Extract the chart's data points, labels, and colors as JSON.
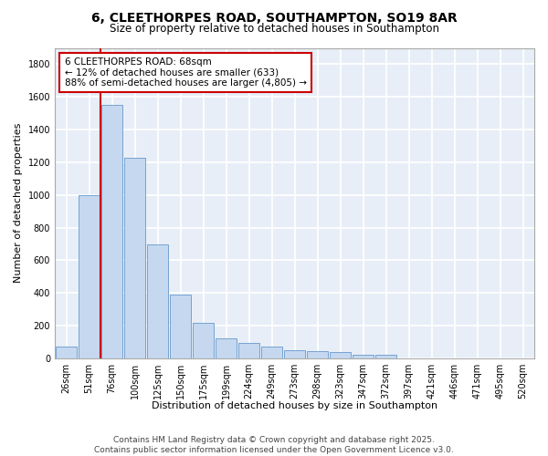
{
  "title_line1": "6, CLEETHORPES ROAD, SOUTHAMPTON, SO19 8AR",
  "title_line2": "Size of property relative to detached houses in Southampton",
  "xlabel": "Distribution of detached houses by size in Southampton",
  "ylabel": "Number of detached properties",
  "categories": [
    "26sqm",
    "51sqm",
    "76sqm",
    "100sqm",
    "125sqm",
    "150sqm",
    "175sqm",
    "199sqm",
    "224sqm",
    "249sqm",
    "273sqm",
    "298sqm",
    "323sqm",
    "347sqm",
    "372sqm",
    "397sqm",
    "421sqm",
    "446sqm",
    "471sqm",
    "495sqm",
    "520sqm"
  ],
  "values": [
    75,
    1000,
    1550,
    1230,
    700,
    390,
    220,
    125,
    95,
    70,
    50,
    45,
    40,
    20,
    20,
    0,
    0,
    0,
    0,
    0,
    0
  ],
  "bar_color": "#c5d8ef",
  "bar_edge_color": "#6699cc",
  "background_color": "#e8eef7",
  "grid_color": "#ffffff",
  "marker_line_color": "#cc0000",
  "annotation_text_line1": "6 CLEETHORPES ROAD: 68sqm",
  "annotation_text_line2": "← 12% of detached houses are smaller (633)",
  "annotation_text_line3": "88% of semi-detached houses are larger (4,805) →",
  "annotation_border_color": "#cc0000",
  "annotation_facecolor": "#ffffff",
  "ylim": [
    0,
    1900
  ],
  "yticks": [
    0,
    200,
    400,
    600,
    800,
    1000,
    1200,
    1400,
    1600,
    1800
  ],
  "footer": "Contains HM Land Registry data © Crown copyright and database right 2025.\nContains public sector information licensed under the Open Government Licence v3.0.",
  "title_fontsize": 10,
  "subtitle_fontsize": 8.5,
  "axis_label_fontsize": 8,
  "tick_fontsize": 7,
  "annotation_fontsize": 7.5,
  "footer_fontsize": 6.5
}
